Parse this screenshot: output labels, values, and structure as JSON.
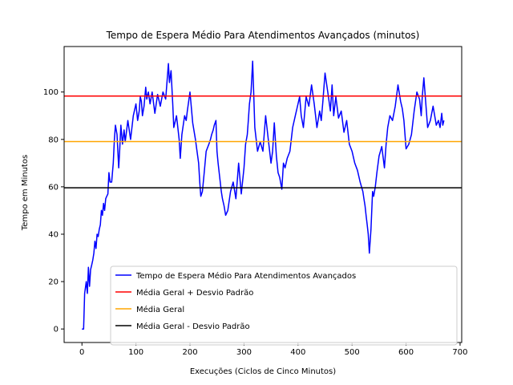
{
  "chart_data": {
    "type": "line",
    "title": "Tempo de Espera Médio Para Atendimentos Avançados (minutos)",
    "xlabel": "Execuções (Ciclos de Cinco Minutos)",
    "ylabel": "Tempo em Minutos",
    "xlim": [
      -33,
      703
    ],
    "ylim": [
      -5.7,
      119.2
    ],
    "xticks": [
      0,
      100,
      200,
      300,
      400,
      500,
      600,
      700
    ],
    "yticks": [
      0,
      20,
      40,
      60,
      80,
      100
    ],
    "grid": false,
    "legend_position": "lower-right",
    "series": [
      {
        "name": "Tempo de Espera Médio Para Atendimentos Avançados",
        "color": "#0000ff",
        "x": [
          0,
          3,
          5,
          8,
          10,
          12,
          14,
          16,
          18,
          20,
          22,
          24,
          26,
          28,
          30,
          32,
          34,
          36,
          38,
          40,
          42,
          44,
          46,
          48,
          50,
          52,
          55,
          58,
          60,
          62,
          65,
          68,
          70,
          72,
          75,
          78,
          80,
          85,
          90,
          95,
          100,
          103,
          106,
          108,
          110,
          112,
          115,
          118,
          120,
          123,
          126,
          130,
          135,
          140,
          145,
          150,
          155,
          160,
          162,
          165,
          168,
          170,
          175,
          180,
          182,
          185,
          190,
          193,
          195,
          200,
          205,
          210,
          213,
          216,
          218,
          220,
          223,
          226,
          230,
          235,
          238,
          240,
          243,
          245,
          248,
          250,
          252,
          255,
          258,
          260,
          263,
          266,
          270,
          275,
          280,
          285,
          290,
          295,
          300,
          303,
          306,
          308,
          310,
          313,
          316,
          320,
          325,
          330,
          335,
          340,
          345,
          350,
          353,
          356,
          360,
          363,
          366,
          370,
          373,
          376,
          380,
          385,
          390,
          395,
          400,
          403,
          406,
          410,
          415,
          420,
          425,
          430,
          435,
          440,
          443,
          446,
          450,
          455,
          460,
          463,
          466,
          470,
          475,
          480,
          485,
          490,
          495,
          500,
          505,
          510,
          515,
          520,
          522,
          524,
          526,
          528,
          530,
          532,
          535,
          538,
          540,
          543,
          546,
          550,
          555,
          560,
          563,
          566,
          570,
          575,
          580,
          585,
          590,
          593,
          596,
          600,
          605,
          610,
          615,
          620,
          625,
          628,
          630,
          633,
          636,
          640,
          645,
          650,
          653,
          656,
          660,
          663,
          666,
          668,
          670
        ],
        "values": [
          0,
          0,
          15,
          20,
          15,
          26,
          18,
          25,
          27,
          29,
          32,
          37,
          34,
          40,
          39,
          42,
          44,
          50,
          48,
          53,
          50,
          55,
          56,
          57,
          66,
          62,
          62,
          70,
          80,
          86,
          82,
          68,
          76,
          86,
          78,
          84,
          79,
          88,
          80,
          90,
          95,
          88,
          92,
          98,
          96,
          90,
          94,
          102,
          97,
          100,
          95,
          100,
          91,
          99,
          94,
          100,
          97,
          112,
          104,
          109,
          95,
          85,
          90,
          80,
          72,
          82,
          90,
          88,
          92,
          100,
          87,
          80,
          75,
          70,
          62,
          56,
          58,
          65,
          75,
          78,
          80,
          82,
          84,
          86,
          88,
          75,
          70,
          64,
          58,
          55,
          52,
          48,
          50,
          58,
          62,
          55,
          70,
          57,
          68,
          78,
          82,
          88,
          95,
          100,
          113,
          85,
          75,
          79,
          75,
          90,
          80,
          70,
          75,
          87,
          73,
          66,
          64,
          59,
          70,
          68,
          72,
          75,
          85,
          90,
          95,
          98,
          90,
          85,
          98,
          94,
          103,
          95,
          85,
          92,
          88,
          96,
          108,
          100,
          92,
          103,
          90,
          98,
          89,
          92,
          83,
          88,
          78,
          75,
          70,
          67,
          62,
          58,
          55,
          52,
          48,
          44,
          40,
          32,
          42,
          58,
          56,
          60,
          66,
          73,
          77,
          68,
          78,
          85,
          90,
          88,
          94,
          103,
          96,
          93,
          88,
          76,
          78,
          82,
          92,
          100,
          97,
          90,
          98,
          106,
          97,
          85,
          88,
          94,
          90,
          86,
          88,
          85,
          91,
          86,
          88
        ]
      },
      {
        "name": "Média Geral + Desvio Padrão",
        "color": "#ff0000",
        "hline": 98.3
      },
      {
        "name": "Média Geral",
        "color": "#ffa500",
        "hline": 79.1
      },
      {
        "name": "Média Geral - Desvio Padrão",
        "color": "#000000",
        "hline": 59.6
      }
    ]
  }
}
